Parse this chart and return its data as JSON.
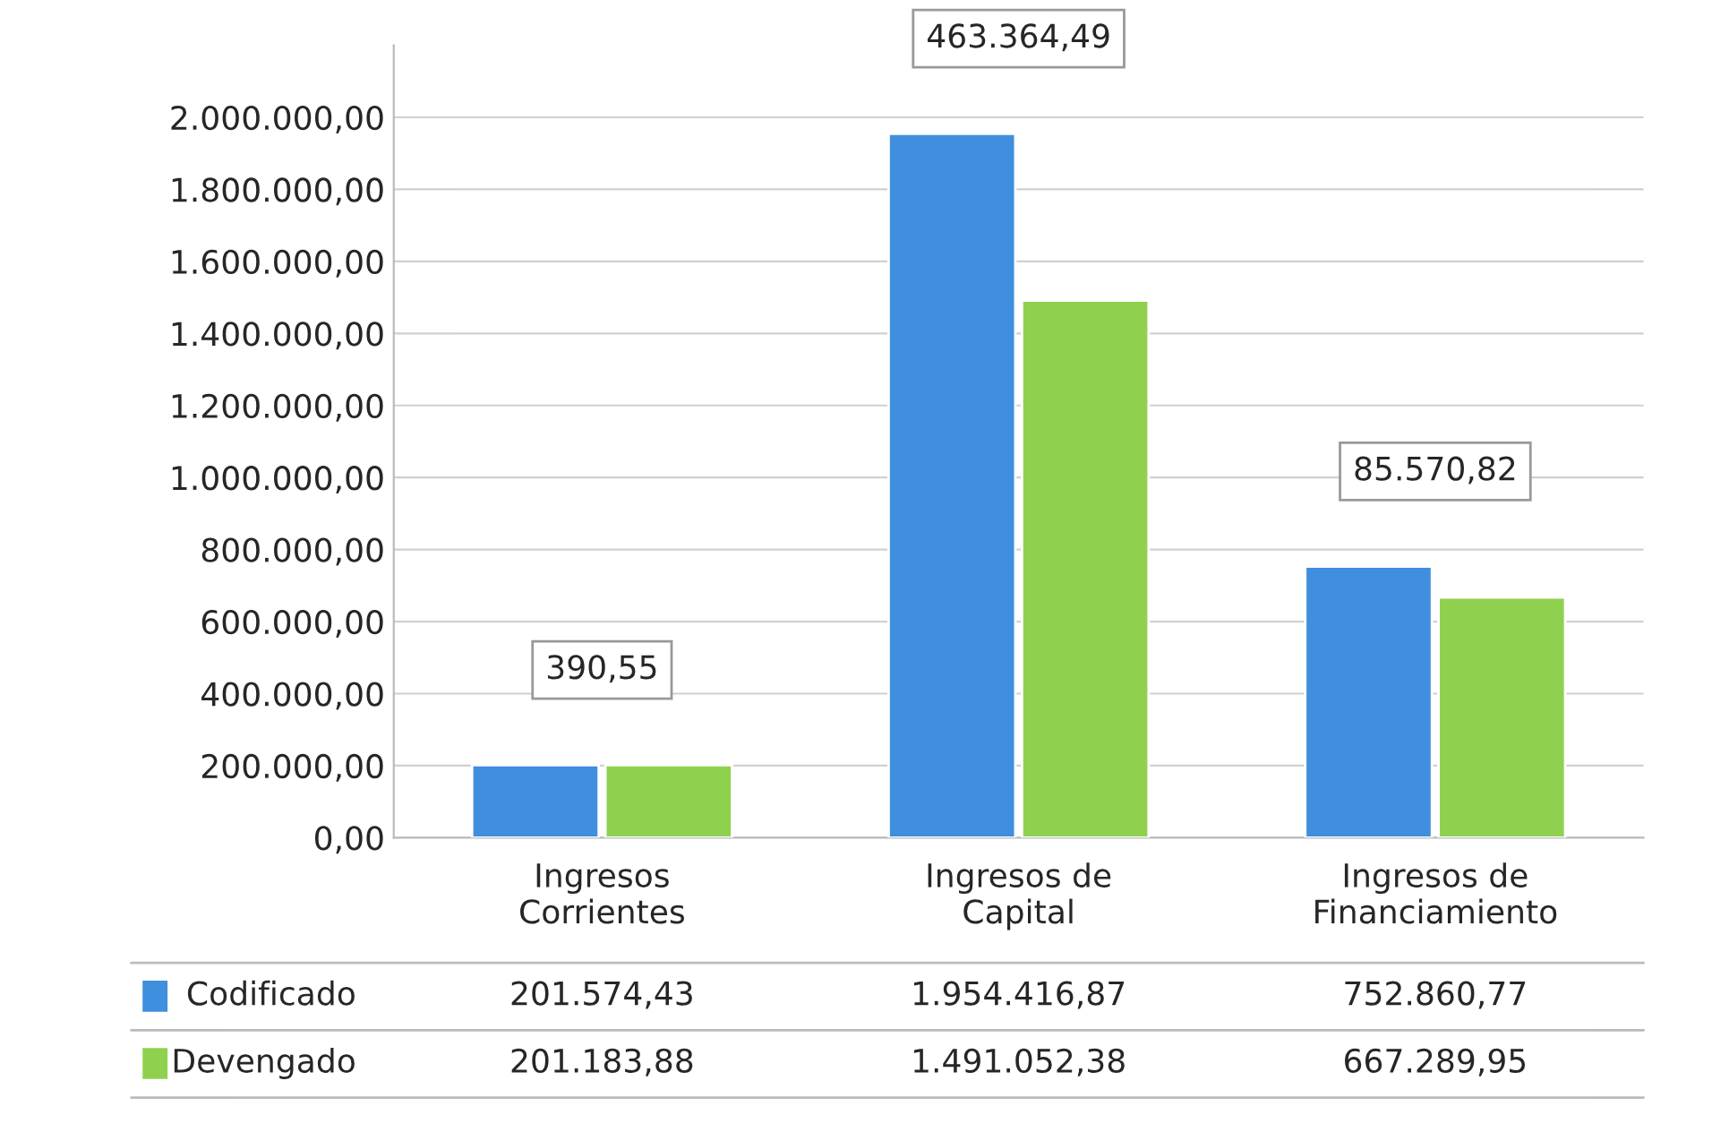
{
  "chart_data": {
    "type": "bar",
    "categories": [
      "Ingresos Corrientes",
      "Ingresos de Capital",
      "Ingresos de Financiamiento"
    ],
    "series": [
      {
        "name": "Codificado",
        "color": "#3f8fde",
        "values": [
          201574.43,
          1954416.87,
          752860.77
        ],
        "value_labels": [
          "201.574,43",
          "1.954.416,87",
          "752.860,77"
        ]
      },
      {
        "name": "Devengado",
        "color": "#8fd14f",
        "values": [
          201183.88,
          1491052.38,
          667289.95
        ],
        "value_labels": [
          "201.183,88",
          "1.491.052,38",
          "667.289,95"
        ]
      }
    ],
    "ylim": [
      0,
      2200000
    ],
    "yticks": [
      {
        "value": 0,
        "label": "0,00"
      },
      {
        "value": 200000,
        "label": "200.000,00"
      },
      {
        "value": 400000,
        "label": "400.000,00"
      },
      {
        "value": 600000,
        "label": "600.000,00"
      },
      {
        "value": 800000,
        "label": "800.000,00"
      },
      {
        "value": 1000000,
        "label": "1.000.000,00"
      },
      {
        "value": 1200000,
        "label": "1.200.000,00"
      },
      {
        "value": 1400000,
        "label": "1.400.000,00"
      },
      {
        "value": 1600000,
        "label": "1.600.000,00"
      },
      {
        "value": 1800000,
        "label": "1.800.000,00"
      },
      {
        "value": 2000000,
        "label": "2.000.000,00"
      }
    ],
    "grid": "y",
    "legend": "bottom",
    "annotations": [
      "390,55",
      "463.364,49",
      "85.570,82"
    ]
  }
}
